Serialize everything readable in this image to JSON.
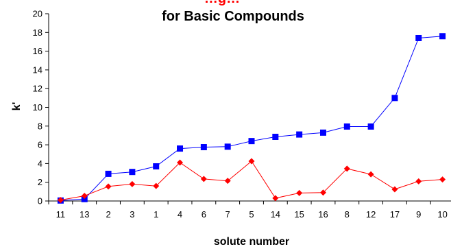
{
  "chart_data": {
    "type": "line",
    "title_line1": "…g…",
    "title_line2": "for Basic Compounds",
    "xlabel": "solute number",
    "ylabel": "k'",
    "categories": [
      "11",
      "13",
      "2",
      "3",
      "1",
      "4",
      "6",
      "7",
      "5",
      "14",
      "15",
      "16",
      "8",
      "12",
      "17",
      "9",
      "10"
    ],
    "ylim": [
      0,
      20
    ],
    "yticks": [
      0,
      2,
      4,
      6,
      8,
      10,
      12,
      14,
      16,
      18,
      20
    ],
    "grid": false,
    "series": [
      {
        "color": "#0000ff",
        "marker": "square",
        "values": [
          0.05,
          0.2,
          2.9,
          3.1,
          3.7,
          5.6,
          5.75,
          5.8,
          6.4,
          6.85,
          7.1,
          7.3,
          7.95,
          7.95,
          11.0,
          17.4,
          17.6
        ]
      },
      {
        "color": "#ff0000",
        "marker": "diamond",
        "values": [
          0.1,
          0.55,
          1.55,
          1.8,
          1.6,
          4.1,
          2.35,
          2.15,
          4.25,
          0.3,
          0.85,
          0.9,
          3.45,
          2.85,
          1.25,
          2.1,
          2.3
        ]
      }
    ]
  }
}
